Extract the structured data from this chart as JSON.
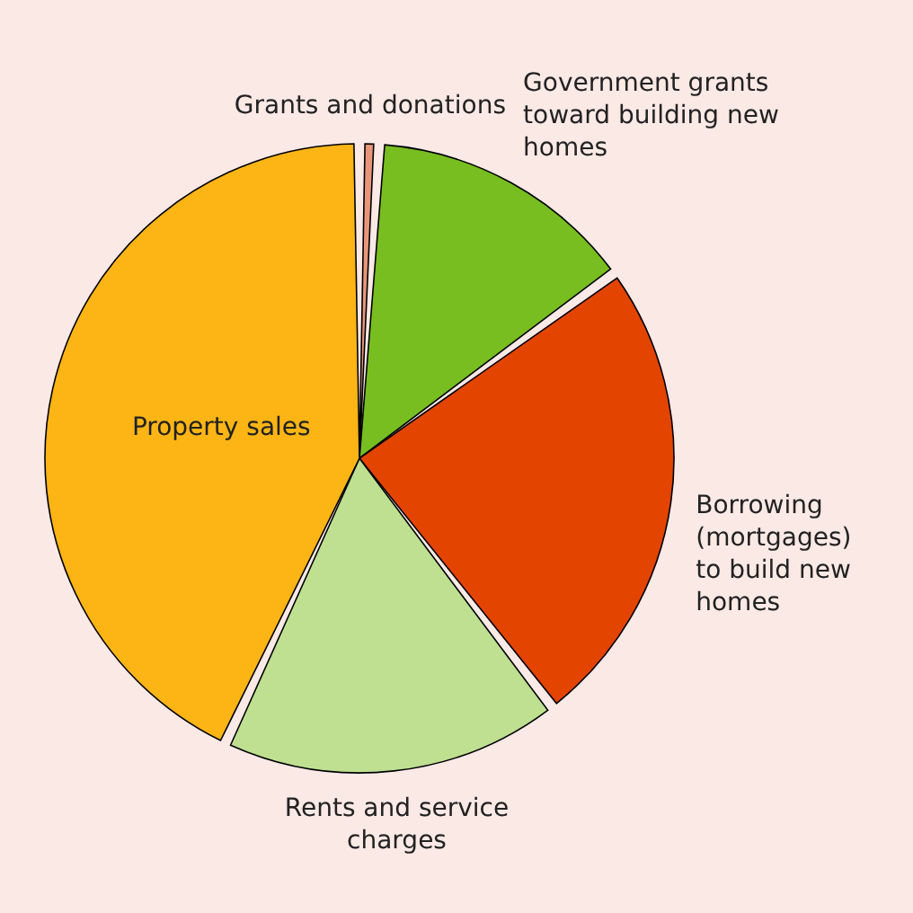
{
  "chart_data": {
    "type": "pie",
    "categories": [
      "Grants and donations",
      "Government grants toward building new homes",
      "Borrowing (mortgages) to build new homes",
      "Rents and service charges",
      "Property sales"
    ],
    "values": [
      1,
      14,
      24.5,
      17.5,
      43
    ],
    "colors": [
      "#e8967a",
      "#78be20",
      "#e34400",
      "#bfe091",
      "#fdb515"
    ]
  }
}
